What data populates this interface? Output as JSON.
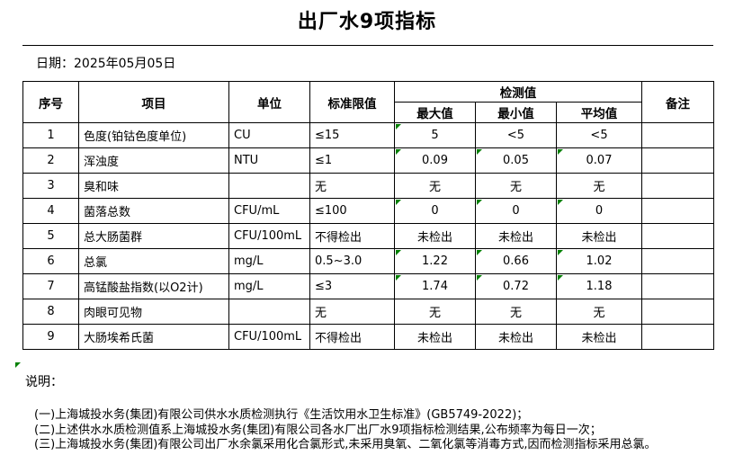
{
  "page": {
    "title": "出厂水9项指标",
    "date": {
      "label": "日期：",
      "value": "2025年05月05日"
    }
  },
  "table": {
    "headers": {
      "seq": "序号",
      "item": "项目",
      "unit": "单位",
      "limit": "标准限值",
      "detection": "检测值",
      "max": "最大值",
      "min": "最小值",
      "avg": "平均值",
      "remark": "备注"
    },
    "rows": [
      {
        "seq": "1",
        "item": "色度(铂钴色度单位)",
        "unit": "CU",
        "limit": "≤15",
        "max": "5",
        "min": "<5",
        "avg": "<5",
        "remark": "",
        "triangles": [
          "max"
        ]
      },
      {
        "seq": "2",
        "item": "浑浊度",
        "unit": "NTU",
        "limit": "≤1",
        "max": "0.09",
        "min": "0.05",
        "avg": "0.07",
        "remark": "",
        "triangles": [
          "max",
          "min",
          "avg"
        ]
      },
      {
        "seq": "3",
        "item": "臭和味",
        "unit": "",
        "limit": "无",
        "max": "无",
        "min": "无",
        "avg": "无",
        "remark": "",
        "triangles": []
      },
      {
        "seq": "4",
        "item": "菌落总数",
        "unit": "CFU/mL",
        "limit": "≤100",
        "max": "0",
        "min": "0",
        "avg": "0",
        "remark": "",
        "triangles": [
          "max",
          "min",
          "avg"
        ]
      },
      {
        "seq": "5",
        "item": "总大肠菌群",
        "unit": "CFU/100mL",
        "limit": "不得检出",
        "max": "未检出",
        "min": "未检出",
        "avg": "未检出",
        "remark": "",
        "triangles": []
      },
      {
        "seq": "6",
        "item": "总氯",
        "unit": "mg/L",
        "limit": "0.5~3.0",
        "max": "1.22",
        "min": "0.66",
        "avg": "1.02",
        "remark": "",
        "triangles": [
          "max",
          "min",
          "avg"
        ]
      },
      {
        "seq": "7",
        "item": "高锰酸盐指数(以O2计)",
        "unit": "mg/L",
        "limit": "≤3",
        "max": "1.74",
        "min": "0.72",
        "avg": "1.18",
        "remark": "",
        "triangles": [
          "max",
          "min",
          "avg"
        ]
      },
      {
        "seq": "8",
        "item": "肉眼可见物",
        "unit": "",
        "limit": "无",
        "max": "无",
        "min": "无",
        "avg": "无",
        "remark": "",
        "triangles": []
      },
      {
        "seq": "9",
        "item": "大肠埃希氏菌",
        "unit": "CFU/100mL",
        "limit": "不得检出",
        "max": "未检出",
        "min": "未检出",
        "avg": "未检出",
        "remark": "",
        "triangles": []
      }
    ]
  },
  "notes": {
    "label": "说明：",
    "items": [
      "(一)上海城投水务(集团)有限公司供水水质检测执行《生活饮用水卫生标准》(GB5749-2022)；",
      "(二)上述供水水质检测值系上海城投水务(集团)有限公司各水厂出厂水9项指标检测结果,公布频率为每日一次；",
      "(三)上海城投水务(集团)有限公司出厂水余氯采用化合氯形式,未采用臭氧、二氧化氯等消毒方式,因而检测指标采用总氯。"
    ]
  },
  "colors": {
    "background": "#ffffff",
    "border": "#000000",
    "marker_green": "#008000"
  }
}
